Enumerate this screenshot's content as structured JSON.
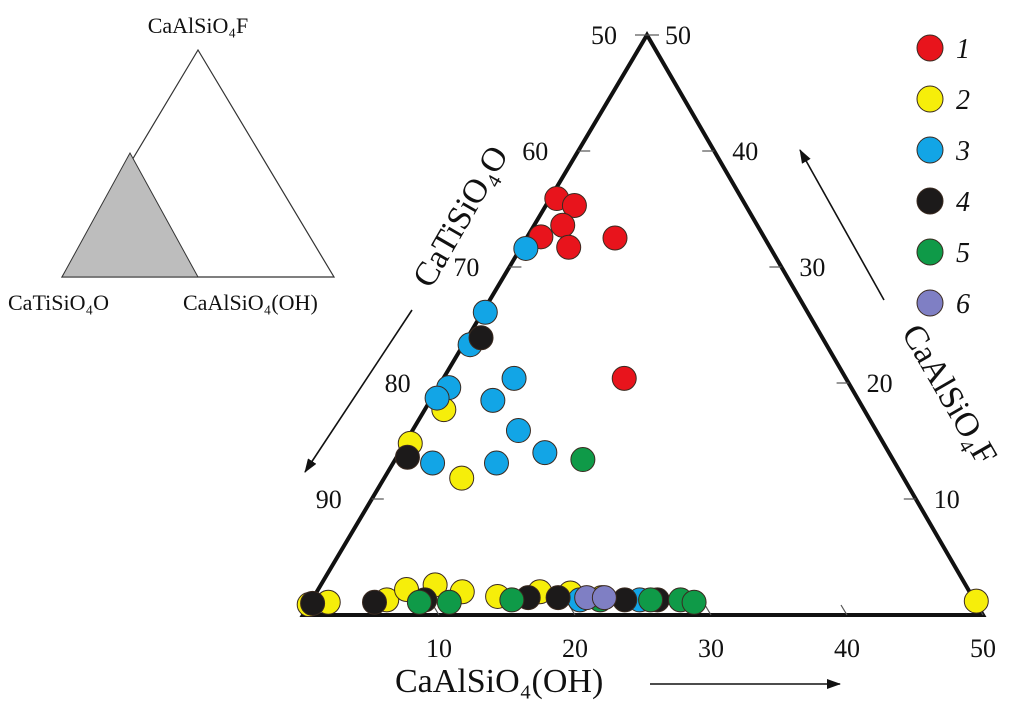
{
  "chart_data": {
    "type": "ternary",
    "inset": {
      "top": "CaAlSiO₄F",
      "left": "CaTiSiO₄O",
      "right": "CaAlSiO₄(OH)"
    },
    "xlim": [
      0,
      50
    ],
    "ylim": [
      0,
      50
    ],
    "bottom_axis": {
      "title": "CaAlSiO₄(OH)",
      "ticks": [
        10,
        20,
        30,
        40,
        50
      ]
    },
    "left_axis": {
      "title": "CaTiSiO₄O",
      "ticks": [
        50,
        60,
        70,
        80,
        90
      ]
    },
    "right_axis": {
      "title": "CaAlSiO₄F",
      "ticks": [
        10,
        20,
        30,
        40,
        50
      ]
    },
    "legend": "upper right",
    "series": [
      {
        "name": "1",
        "color": "#e8141c",
        "x": [
          0.5,
          2.1,
          2.1,
          1.0,
          3.5,
          6.5,
          13.3
        ],
        "values": [
          35.9,
          35.3,
          33.6,
          32.6,
          31.7,
          32.5,
          20.4
        ]
      },
      {
        "name": "2",
        "color": "#f6ee0a",
        "x": [
          1.4,
          0.4,
          5.7,
          0,
          1.3,
          5.5,
          6.5,
          8.4,
          10.7,
          13.5,
          16.4,
          18.7,
          21.2,
          48.9
        ],
        "values": [
          17.7,
          14.8,
          11.8,
          0.9,
          1.1,
          1.3,
          2.2,
          2.6,
          2.0,
          1.6,
          2.0,
          1.9,
          1.5,
          1.2
        ]
      },
      {
        "name": "3",
        "color": "#12a5e6",
        "x": [
          0.4,
          0.2,
          0.5,
          0.8,
          0.4,
          5.2,
          4.6,
          7.8,
          10.7,
          2.9,
          7.6,
          19.7,
          24.1
        ],
        "values": [
          31.6,
          26.1,
          23.3,
          19.6,
          18.7,
          20.4,
          18.5,
          15.9,
          14.0,
          13.1,
          13.1,
          1.3,
          1.3
        ]
      },
      {
        "name": "4",
        "color": "#1c1a1a",
        "x": [
          1.0,
          0.8,
          0.2,
          4.7,
          8.3,
          15.8,
          18.0,
          23.0,
          25.4
        ],
        "values": [
          23.9,
          13.6,
          1.0,
          1.1,
          1.3,
          1.5,
          1.5,
          1.3,
          1.3
        ]
      },
      {
        "name": "5",
        "color": "#0f9a48",
        "x": [
          13.8,
          8.0,
          10.2,
          14.7,
          21.2,
          24.9,
          27.1,
          28.2
        ],
        "values": [
          13.4,
          1.1,
          1.1,
          1.3,
          1.3,
          1.3,
          1.3,
          1.1
        ]
      },
      {
        "name": "6",
        "color": "#7f7fc4",
        "x": [
          20.1,
          21.4
        ],
        "values": [
          1.5,
          1.5
        ]
      }
    ]
  }
}
